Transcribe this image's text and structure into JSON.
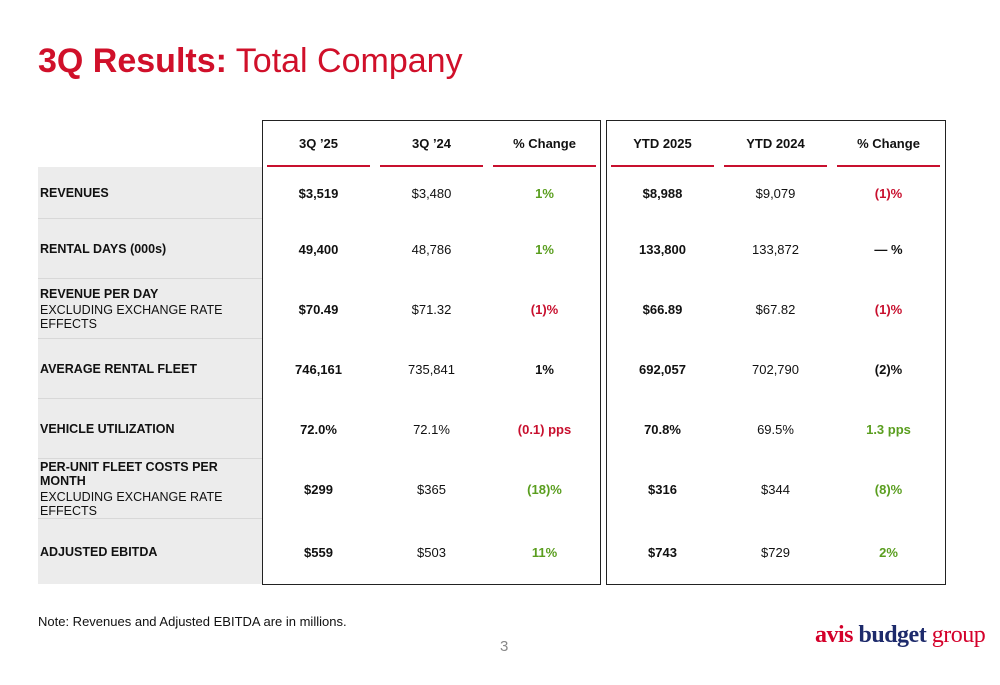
{
  "title_bold": "3Q Results:",
  "title_rest": "Total Company",
  "table": {
    "headers": [
      "3Q ’25",
      "3Q ’24",
      "% Change",
      "YTD 2025",
      "YTD 2024",
      "% Change"
    ],
    "colors": {
      "green": "#5a9e1f",
      "red": "#c8102e",
      "black": "#111111"
    },
    "rows": [
      {
        "label": "REVENUES",
        "values": [
          "$3,519",
          "$3,480",
          "1%",
          "$8,988",
          "$9,079",
          "(1)%"
        ],
        "change_colors": [
          "green",
          "red"
        ]
      },
      {
        "label": "RENTAL DAYS (000s)",
        "values": [
          "49,400",
          "48,786",
          "1%",
          "133,800",
          "133,872",
          "— %"
        ],
        "change_colors": [
          "green",
          "black"
        ]
      },
      {
        "label": "REVENUE PER DAY",
        "sublabel": "EXCLUDING EXCHANGE RATE EFFECTS",
        "values": [
          "$70.49",
          "$71.32",
          "(1)%",
          "$66.89",
          "$67.82",
          "(1)%"
        ],
        "change_colors": [
          "red",
          "red"
        ]
      },
      {
        "label": "AVERAGE RENTAL FLEET",
        "values": [
          "746,161",
          "735,841",
          "1%",
          "692,057",
          "702,790",
          "(2)%"
        ],
        "change_colors": [
          "black",
          "black"
        ]
      },
      {
        "label": "VEHICLE UTILIZATION",
        "values": [
          "72.0%",
          "72.1%",
          "(0.1) pps",
          "70.8%",
          "69.5%",
          "1.3 pps"
        ],
        "change_colors": [
          "red",
          "green"
        ]
      },
      {
        "label": "PER-UNIT FLEET COSTS PER MONTH",
        "sublabel": "EXCLUDING EXCHANGE RATE EFFECTS",
        "values": [
          "$299",
          "$365",
          "(18)%",
          "$316",
          "$344",
          "(8)%"
        ],
        "change_colors": [
          "green",
          "green"
        ]
      },
      {
        "label": "ADJUSTED EBITDA",
        "values": [
          "$559",
          "$503",
          "11%",
          "$743",
          "$729",
          "2%"
        ],
        "change_colors": [
          "green",
          "green"
        ]
      }
    ]
  },
  "note": "Note: Revenues and Adjusted EBITDA are in millions.",
  "page_number": "3",
  "logo": {
    "part1": "avis",
    "part2": "budget",
    "part3": "group"
  }
}
